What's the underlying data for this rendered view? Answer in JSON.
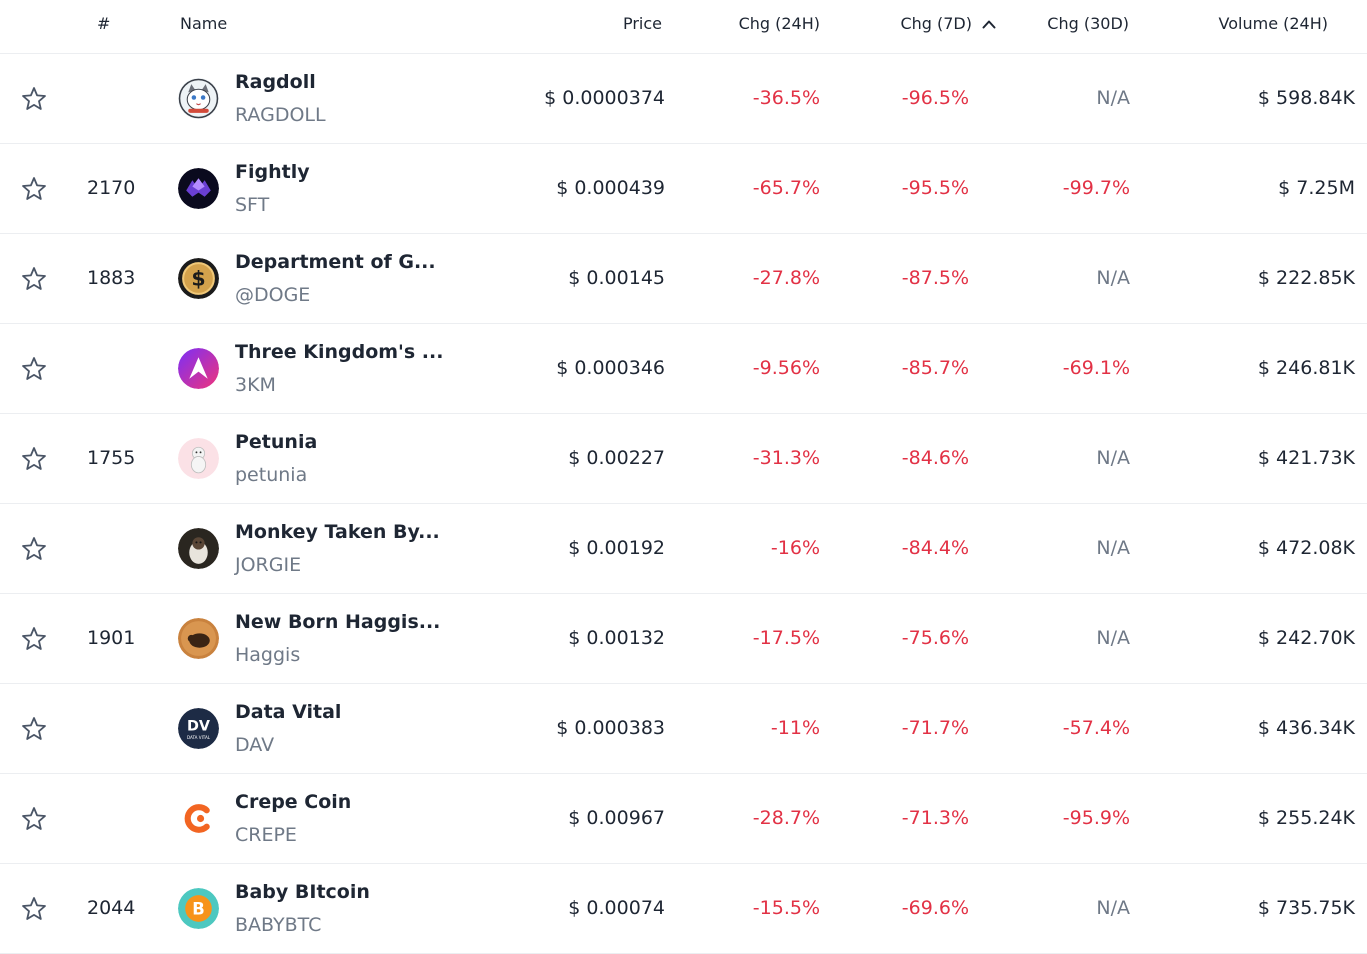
{
  "colors": {
    "negative": "#e23145",
    "muted": "#6f7987",
    "text": "#1e2633",
    "border": "#eceef1"
  },
  "header": {
    "rank": "#",
    "name": "Name",
    "price": "Price",
    "chg24": "Chg (24H)",
    "chg7": "Chg (7D)",
    "chg30": "Chg (30D)",
    "volume": "Volume (24H)",
    "sort_icon": "chevron-up-icon"
  },
  "rows": [
    {
      "rank": "",
      "name": "Ragdoll",
      "symbol": "RAGDOLL",
      "price": "$ 0.0000374",
      "chg24": "-36.5%",
      "chg7": "-96.5%",
      "chg30": "N/A",
      "volume": "$ 598.84K",
      "logo": "ragdoll-cat-logo"
    },
    {
      "rank": "2170",
      "name": "Fightly",
      "symbol": "SFT",
      "price": "$ 0.000439",
      "chg24": "-65.7%",
      "chg7": "-95.5%",
      "chg30": "-99.7%",
      "volume": "$ 7.25M",
      "logo": "fightly-logo"
    },
    {
      "rank": "1883",
      "name": "Department of G...",
      "symbol": "@DOGE",
      "price": "$ 0.00145",
      "chg24": "-27.8%",
      "chg7": "-87.5%",
      "chg30": "N/A",
      "volume": "$ 222.85K",
      "logo": "dollar-coin-logo"
    },
    {
      "rank": "",
      "name": "Three Kingdom's ...",
      "symbol": "3KM",
      "price": "$ 0.000346",
      "chg24": "-9.56%",
      "chg7": "-85.7%",
      "chg30": "-69.1%",
      "volume": "$ 246.81K",
      "logo": "three-kingdom-logo"
    },
    {
      "rank": "1755",
      "name": "Petunia",
      "symbol": "petunia",
      "price": "$ 0.00227",
      "chg24": "-31.3%",
      "chg7": "-84.6%",
      "chg30": "N/A",
      "volume": "$ 421.73K",
      "logo": "petunia-logo"
    },
    {
      "rank": "",
      "name": "Monkey Taken By...",
      "symbol": "JORGIE",
      "price": "$ 0.00192",
      "chg24": "-16%",
      "chg7": "-84.4%",
      "chg30": "N/A",
      "volume": "$ 472.08K",
      "logo": "monkey-logo"
    },
    {
      "rank": "1901",
      "name": "New Born Haggis...",
      "symbol": "Haggis",
      "price": "$ 0.00132",
      "chg24": "-17.5%",
      "chg7": "-75.6%",
      "chg30": "N/A",
      "volume": "$ 242.70K",
      "logo": "haggis-logo"
    },
    {
      "rank": "",
      "name": "Data Vital",
      "symbol": "DAV",
      "price": "$ 0.000383",
      "chg24": "-11%",
      "chg7": "-71.7%",
      "chg30": "-57.4%",
      "volume": "$ 436.34K",
      "logo": "data-vital-logo"
    },
    {
      "rank": "",
      "name": "Crepe Coin",
      "symbol": "CREPE",
      "price": "$ 0.00967",
      "chg24": "-28.7%",
      "chg7": "-71.3%",
      "chg30": "-95.9%",
      "volume": "$ 255.24K",
      "logo": "crepe-coin-logo"
    },
    {
      "rank": "2044",
      "name": "Baby BItcoin",
      "symbol": "BABYBTC",
      "price": "$ 0.00074",
      "chg24": "-15.5%",
      "chg7": "-69.6%",
      "chg30": "N/A",
      "volume": "$ 735.75K",
      "logo": "baby-bitcoin-logo"
    }
  ]
}
